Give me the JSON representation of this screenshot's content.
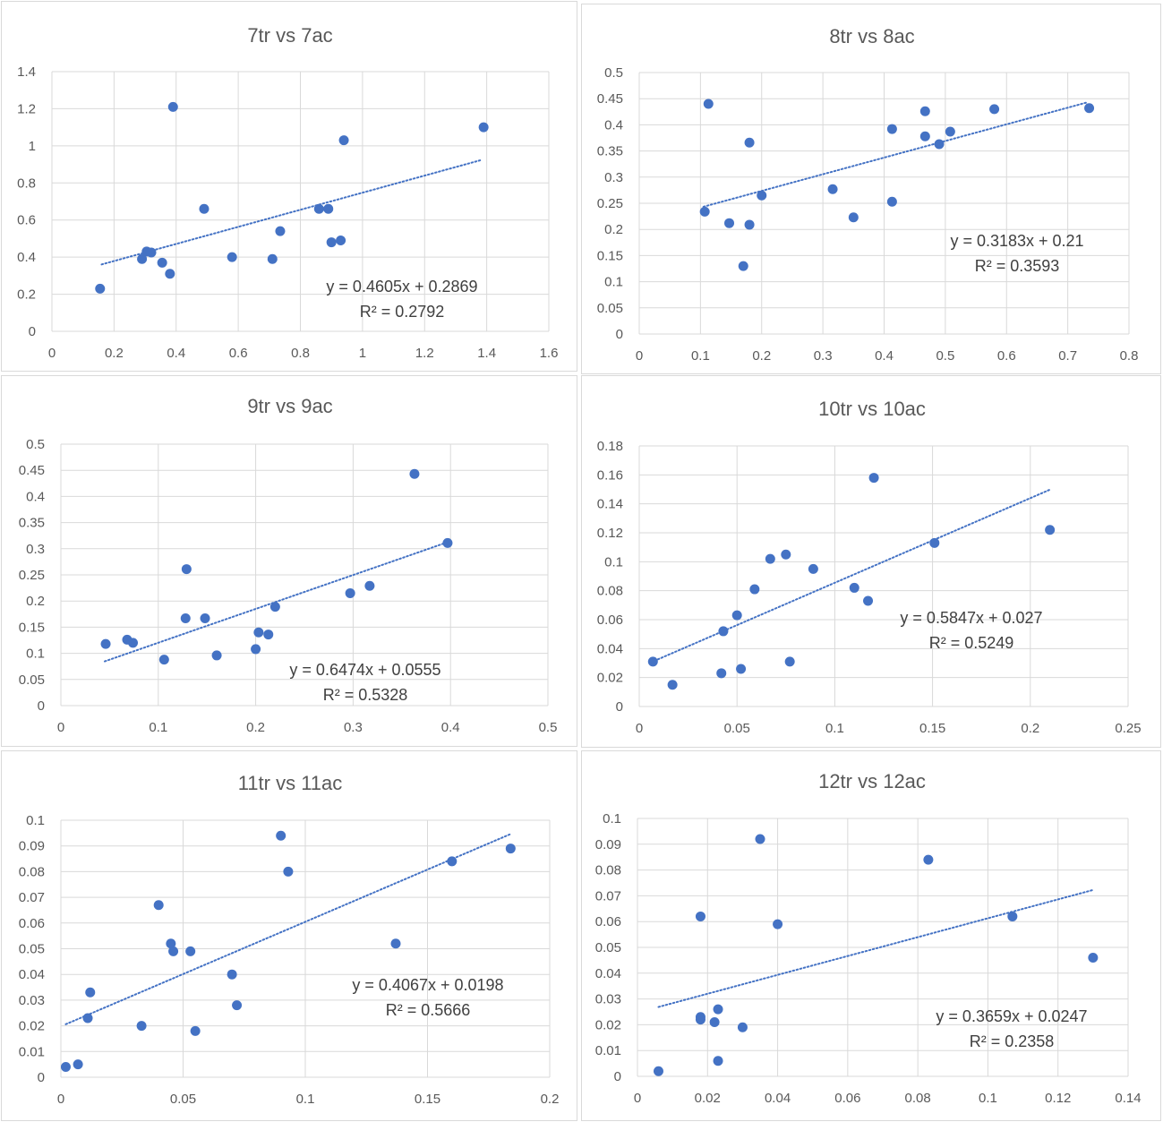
{
  "colors": {
    "point": "#4472c4",
    "trend": "#4472c4",
    "grid": "#d9d9d9",
    "text": "#595959"
  },
  "chart_data": [
    {
      "type": "scatter",
      "title": "7tr vs 7ac",
      "xlim": [
        0,
        1.6
      ],
      "ylim": [
        0,
        1.4
      ],
      "xticks": [
        "0",
        "0.2",
        "0.4",
        "0.6",
        "0.8",
        "1",
        "1.2",
        "1.4",
        "1.6"
      ],
      "yticks": [
        "0",
        "0.2",
        "0.4",
        "0.6",
        "0.8",
        "1",
        "1.2",
        "1.4"
      ],
      "grid": true,
      "trendline": {
        "type": "linear",
        "slope": 0.4605,
        "intercept": 0.2869,
        "x_range": [
          0.16,
          1.38
        ]
      },
      "equation": "y = 0.4605x + 0.2869",
      "r2": "R² = 0.2792",
      "points": [
        [
          0.155,
          0.23
        ],
        [
          0.29,
          0.39
        ],
        [
          0.305,
          0.43
        ],
        [
          0.32,
          0.425
        ],
        [
          0.355,
          0.37
        ],
        [
          0.38,
          0.31
        ],
        [
          0.39,
          1.21
        ],
        [
          0.49,
          0.66
        ],
        [
          0.58,
          0.4
        ],
        [
          0.71,
          0.39
        ],
        [
          0.735,
          0.54
        ],
        [
          0.86,
          0.66
        ],
        [
          0.89,
          0.66
        ],
        [
          0.9,
          0.48
        ],
        [
          0.93,
          0.49
        ],
        [
          0.94,
          1.03
        ],
        [
          1.39,
          1.1
        ]
      ]
    },
    {
      "type": "scatter",
      "title": "8tr vs 8ac",
      "xlim": [
        0,
        0.8
      ],
      "ylim": [
        0,
        0.5
      ],
      "xticks": [
        "0",
        "0.1",
        "0.2",
        "0.3",
        "0.4",
        "0.5",
        "0.6",
        "0.7",
        "0.8"
      ],
      "yticks": [
        "0",
        "0.05",
        "0.1",
        "0.15",
        "0.2",
        "0.25",
        "0.3",
        "0.35",
        "0.4",
        "0.45",
        "0.5"
      ],
      "grid": true,
      "trendline": {
        "type": "linear",
        "slope": 0.3183,
        "intercept": 0.21,
        "x_range": [
          0.105,
          0.73
        ]
      },
      "equation": "y = 0.3183x + 0.21",
      "r2": "R² = 0.3593",
      "points": [
        [
          0.107,
          0.234
        ],
        [
          0.113,
          0.44
        ],
        [
          0.147,
          0.212
        ],
        [
          0.17,
          0.13
        ],
        [
          0.18,
          0.366
        ],
        [
          0.18,
          0.209
        ],
        [
          0.2,
          0.265
        ],
        [
          0.316,
          0.277
        ],
        [
          0.35,
          0.223
        ],
        [
          0.413,
          0.253
        ],
        [
          0.413,
          0.392
        ],
        [
          0.467,
          0.426
        ],
        [
          0.467,
          0.378
        ],
        [
          0.49,
          0.363
        ],
        [
          0.508,
          0.387
        ],
        [
          0.58,
          0.43
        ],
        [
          0.735,
          0.432
        ]
      ]
    },
    {
      "type": "scatter",
      "title": "9tr vs 9ac",
      "xlim": [
        0,
        0.5
      ],
      "ylim": [
        0,
        0.5
      ],
      "xticks": [
        "0",
        "0.1",
        "0.2",
        "0.3",
        "0.4",
        "0.5"
      ],
      "yticks": [
        "0",
        "0.05",
        "0.1",
        "0.15",
        "0.2",
        "0.25",
        "0.3",
        "0.35",
        "0.4",
        "0.45",
        "0.5"
      ],
      "grid": true,
      "trendline": {
        "type": "linear",
        "slope": 0.6474,
        "intercept": 0.0555,
        "x_range": [
          0.045,
          0.4
        ]
      },
      "equation": "y = 0.6474x + 0.0555",
      "r2": "R² = 0.5328",
      "points": [
        [
          0.046,
          0.118
        ],
        [
          0.068,
          0.126
        ],
        [
          0.074,
          0.12
        ],
        [
          0.106,
          0.088
        ],
        [
          0.128,
          0.167
        ],
        [
          0.129,
          0.261
        ],
        [
          0.148,
          0.167
        ],
        [
          0.16,
          0.096
        ],
        [
          0.2,
          0.108
        ],
        [
          0.203,
          0.14
        ],
        [
          0.213,
          0.136
        ],
        [
          0.22,
          0.189
        ],
        [
          0.297,
          0.215
        ],
        [
          0.317,
          0.229
        ],
        [
          0.363,
          0.443
        ],
        [
          0.397,
          0.311
        ]
      ]
    },
    {
      "type": "scatter",
      "title": "10tr vs 10ac",
      "xlim": [
        0,
        0.25
      ],
      "ylim": [
        0,
        0.18
      ],
      "xticks": [
        "0",
        "0.05",
        "0.1",
        "0.15",
        "0.2",
        "0.25"
      ],
      "yticks": [
        "0",
        "0.02",
        "0.04",
        "0.06",
        "0.08",
        "0.1",
        "0.12",
        "0.14",
        "0.16",
        "0.18"
      ],
      "grid": true,
      "trendline": {
        "type": "linear",
        "slope": 0.5847,
        "intercept": 0.027,
        "x_range": [
          0.006,
          0.21
        ]
      },
      "equation": "y = 0.5847x + 0.027",
      "r2": "R² = 0.5249",
      "points": [
        [
          0.007,
          0.031
        ],
        [
          0.017,
          0.015
        ],
        [
          0.042,
          0.023
        ],
        [
          0.043,
          0.052
        ],
        [
          0.05,
          0.063
        ],
        [
          0.052,
          0.026
        ],
        [
          0.059,
          0.081
        ],
        [
          0.067,
          0.102
        ],
        [
          0.075,
          0.105
        ],
        [
          0.077,
          0.031
        ],
        [
          0.089,
          0.095
        ],
        [
          0.11,
          0.082
        ],
        [
          0.117,
          0.073
        ],
        [
          0.12,
          0.158
        ],
        [
          0.151,
          0.113
        ],
        [
          0.21,
          0.122
        ]
      ]
    },
    {
      "type": "scatter",
      "title": "11tr vs 11ac",
      "xlim": [
        0,
        0.2
      ],
      "ylim": [
        0,
        0.1
      ],
      "xticks": [
        "0",
        "0.05",
        "0.1",
        "0.15",
        "0.2"
      ],
      "yticks": [
        "0",
        "0.01",
        "0.02",
        "0.03",
        "0.04",
        "0.05",
        "0.06",
        "0.07",
        "0.08",
        "0.09",
        "0.1"
      ],
      "grid": true,
      "trendline": {
        "type": "linear",
        "slope": 0.4067,
        "intercept": 0.0198,
        "x_range": [
          0.002,
          0.184
        ]
      },
      "equation": "y = 0.4067x + 0.0198",
      "r2": "R² = 0.5666",
      "points": [
        [
          0.002,
          0.004
        ],
        [
          0.007,
          0.005
        ],
        [
          0.011,
          0.023
        ],
        [
          0.012,
          0.033
        ],
        [
          0.033,
          0.02
        ],
        [
          0.04,
          0.067
        ],
        [
          0.045,
          0.052
        ],
        [
          0.046,
          0.049
        ],
        [
          0.053,
          0.049
        ],
        [
          0.055,
          0.018
        ],
        [
          0.07,
          0.04
        ],
        [
          0.072,
          0.028
        ],
        [
          0.09,
          0.094
        ],
        [
          0.093,
          0.08
        ],
        [
          0.137,
          0.052
        ],
        [
          0.16,
          0.084
        ],
        [
          0.184,
          0.089
        ]
      ]
    },
    {
      "type": "scatter",
      "title": "12tr vs 12ac",
      "xlim": [
        0,
        0.14
      ],
      "ylim": [
        0,
        0.1
      ],
      "xticks": [
        "0",
        "0.02",
        "0.04",
        "0.06",
        "0.08",
        "0.1",
        "0.12",
        "0.14"
      ],
      "yticks": [
        "0",
        "0.01",
        "0.02",
        "0.03",
        "0.04",
        "0.05",
        "0.06",
        "0.07",
        "0.08",
        "0.09",
        "0.1"
      ],
      "grid": true,
      "trendline": {
        "type": "linear",
        "slope": 0.3659,
        "intercept": 0.0247,
        "x_range": [
          0.006,
          0.13
        ]
      },
      "equation": "y = 0.3659x + 0.0247",
      "r2": "R² = 0.2358",
      "points": [
        [
          0.006,
          0.002
        ],
        [
          0.018,
          0.062
        ],
        [
          0.018,
          0.023
        ],
        [
          0.018,
          0.022
        ],
        [
          0.022,
          0.021
        ],
        [
          0.023,
          0.026
        ],
        [
          0.023,
          0.006
        ],
        [
          0.03,
          0.019
        ],
        [
          0.035,
          0.092
        ],
        [
          0.04,
          0.059
        ],
        [
          0.083,
          0.084
        ],
        [
          0.107,
          0.062
        ],
        [
          0.13,
          0.046
        ]
      ]
    }
  ]
}
